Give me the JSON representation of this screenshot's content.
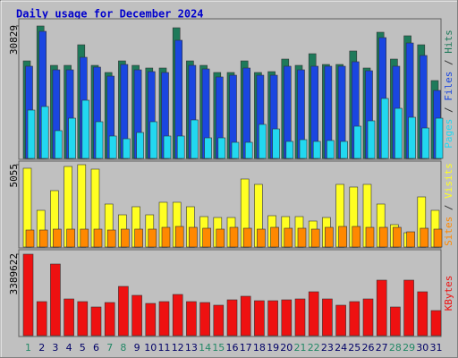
{
  "chart_data": [
    {
      "type": "bar",
      "title": "Daily usage for December 2024",
      "ylim": [
        0,
        32290
      ],
      "yticks": [
        30829
      ],
      "legend_separator": " / ",
      "series": [
        {
          "name": "Hits",
          "color": "#1e7a5a",
          "values": [
            22700,
            30829,
            21660,
            21660,
            26450,
            21660,
            20000,
            22700,
            21660,
            21040,
            21040,
            30410,
            22700,
            21660,
            20000,
            20000,
            22700,
            20000,
            20200,
            23120,
            21660,
            24370,
            21870,
            21870,
            25000,
            21040,
            29370,
            23120,
            28540,
            26450,
            18120
          ]
        },
        {
          "name": "Files",
          "color": "#1a46e0",
          "values": [
            21460,
            29580,
            20620,
            20620,
            23540,
            21250,
            19160,
            21870,
            20620,
            20210,
            20000,
            27500,
            21660,
            20830,
            18960,
            19370,
            21040,
            19370,
            19370,
            21460,
            20620,
            21460,
            21460,
            21460,
            22500,
            20410,
            28120,
            21460,
            26870,
            23960,
            15830
          ]
        },
        {
          "name": "Pages",
          "color": "#22d8f0",
          "values": [
            11250,
            12080,
            6460,
            9370,
            13540,
            8540,
            5210,
            4580,
            6040,
            8540,
            5210,
            5210,
            8960,
            4790,
            4790,
            3750,
            3750,
            7920,
            6870,
            3960,
            4370,
            3960,
            4170,
            3960,
            7500,
            8750,
            13960,
            11660,
            9580,
            7080,
            9370
          ]
        }
      ]
    },
    {
      "type": "bar",
      "ylim": [
        0,
        5220
      ],
      "yticks": [
        5055
      ],
      "legend_separator": " / ",
      "series": [
        {
          "name": "Visits",
          "color": "#ffff22",
          "values": [
            4836,
            2253,
            3462,
            4946,
            5055,
            4781,
            2638,
            1978,
            2473,
            1978,
            2748,
            2748,
            2473,
            1868,
            1813,
            1813,
            4176,
            3847,
            1923,
            1868,
            1868,
            1594,
            1813,
            3847,
            3682,
            3847,
            2638,
            1374,
            879,
            3077,
            2253
          ]
        },
        {
          "name": "Sites",
          "color": "#ff8800",
          "values": [
            1044,
            1044,
            1099,
            1099,
            1099,
            1099,
            1044,
            1099,
            1099,
            1099,
            1209,
            1264,
            1209,
            1154,
            1099,
            1209,
            1154,
            1099,
            1209,
            1154,
            1154,
            1099,
            1209,
            1264,
            1264,
            1209,
            1209,
            1209,
            934,
            1154,
            1099
          ]
        }
      ]
    },
    {
      "type": "bar",
      "ylim": [
        0,
        3538650
      ],
      "yticks": [
        3389622
      ],
      "categories": [
        "1",
        "2",
        "3",
        "4",
        "5",
        "6",
        "7",
        "8",
        "9",
        "10",
        "11",
        "12",
        "13",
        "14",
        "15",
        "16",
        "17",
        "18",
        "19",
        "20",
        "21",
        "22",
        "23",
        "24",
        "25",
        "26",
        "27",
        "28",
        "29",
        "30",
        "31"
      ],
      "category_colors": [
        "#228866",
        "#000066",
        "#000066",
        "#000066",
        "#000066",
        "#000066",
        "#228866",
        "#228866",
        "#000066",
        "#000066",
        "#000066",
        "#000066",
        "#000066",
        "#228866",
        "#228866",
        "#000066",
        "#000066",
        "#000066",
        "#000066",
        "#000066",
        "#228866",
        "#228866",
        "#000066",
        "#000066",
        "#000066",
        "#000066",
        "#000066",
        "#228866",
        "#228866",
        "#000066",
        "#000066"
      ],
      "series": [
        {
          "name": "KBytes",
          "color": "#ee1111",
          "values": [
            3389622,
            1415460,
            2979920,
            1527210,
            1415460,
            1191970,
            1378210,
            2048700,
            1676200,
            1340960,
            1415460,
            1713450,
            1415460,
            1378210,
            1266470,
            1489960,
            1638960,
            1452710,
            1452710,
            1489960,
            1527210,
            1825200,
            1527210,
            1266470,
            1415460,
            1527210,
            2309440,
            1191970,
            2309440,
            1825200,
            1042970
          ]
        }
      ]
    }
  ]
}
